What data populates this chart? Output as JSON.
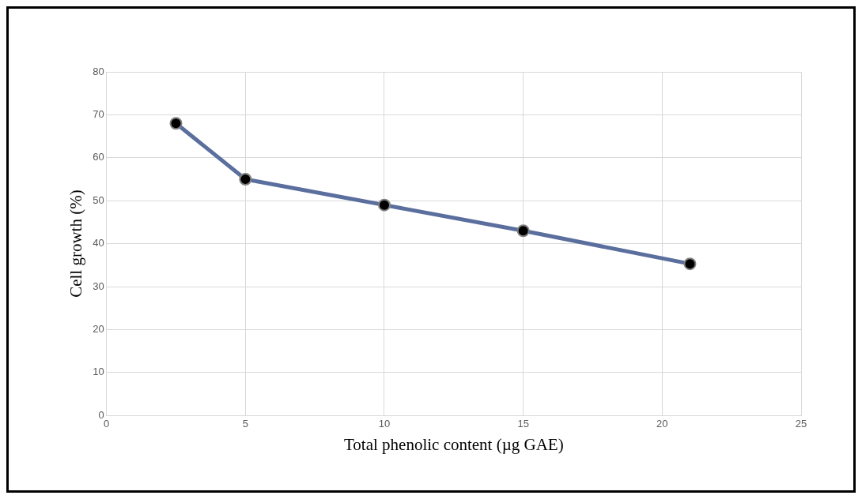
{
  "chart_data": {
    "type": "line",
    "xlabel": "Total phenolic content (µg GAE)",
    "ylabel": "Cell growth (%)",
    "x": [
      2.5,
      5,
      10,
      15,
      21
    ],
    "series": [
      {
        "color": "#5b6f9e",
        "values": [
          68,
          55,
          49,
          43,
          35.3
        ]
      }
    ],
    "xlim": [
      0,
      25
    ],
    "xticks": [
      0,
      5,
      10,
      15,
      20,
      25
    ],
    "ylim": [
      0,
      80
    ],
    "yticks": [
      0,
      10,
      20,
      30,
      40,
      50,
      60,
      70,
      80
    ],
    "grid": true,
    "marker": "circle",
    "line_style": "solid",
    "legend": false
  }
}
